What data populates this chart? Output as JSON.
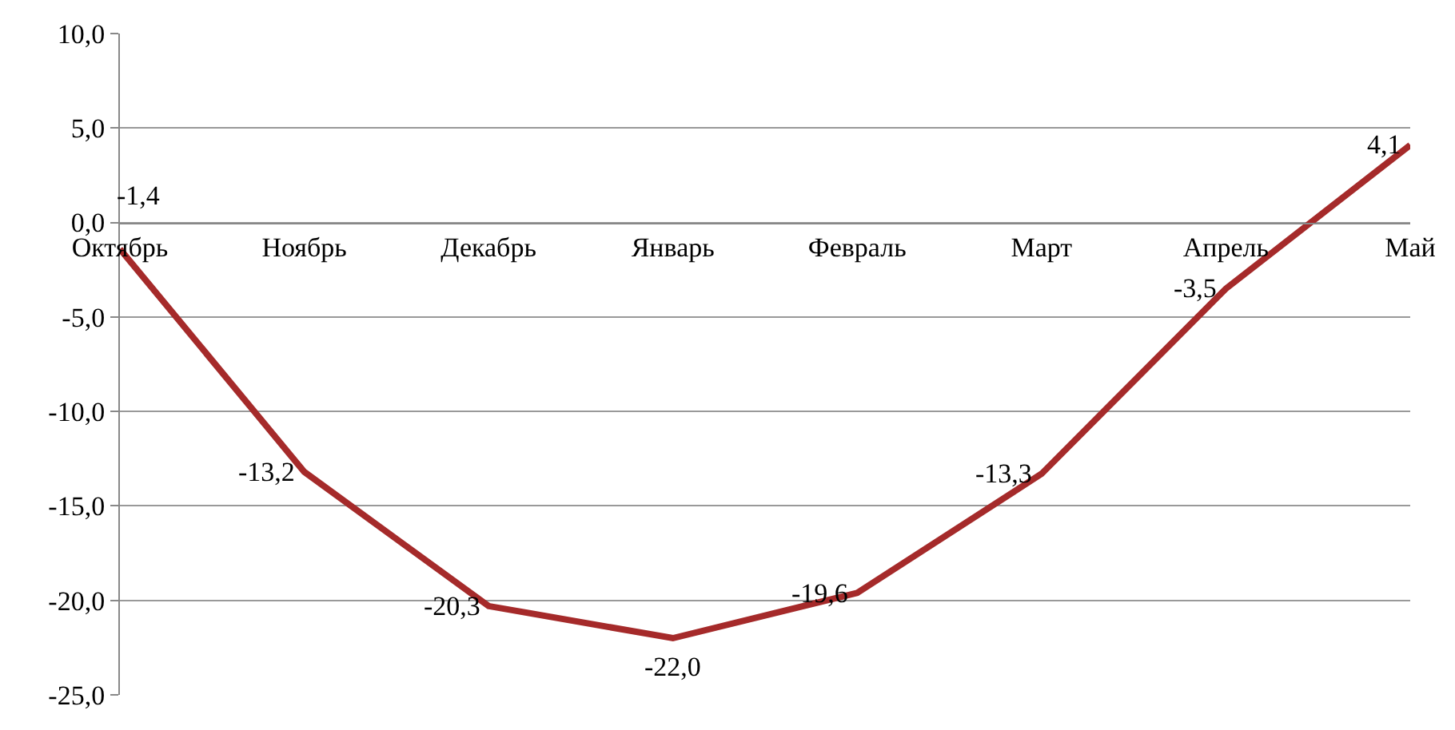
{
  "chart_data": {
    "type": "line",
    "categories": [
      "Октябрь",
      "Ноябрь",
      "Декабрь",
      "Январь",
      "Февраль",
      "Март",
      "Апрель",
      "Май"
    ],
    "series": [
      {
        "color": "#a52a2a",
        "values": [
          -1.4,
          -13.2,
          -20.3,
          -22.0,
          -19.6,
          -13.3,
          -3.5,
          4.1
        ],
        "value_labels": [
          "-1,4",
          "-13,2",
          "-20,3",
          "-22,0",
          "-19,6",
          "-13,3",
          "-3,5",
          "4,1"
        ]
      }
    ],
    "ylim": [
      -25,
      10
    ],
    "yticks": [
      {
        "value": 10,
        "label": "10,0"
      },
      {
        "value": 5,
        "label": "5,0"
      },
      {
        "value": 0,
        "label": "0,0"
      },
      {
        "value": -5,
        "label": "-5,0"
      },
      {
        "value": -10,
        "label": "-10,0"
      },
      {
        "value": -15,
        "label": "-15,0"
      },
      {
        "value": -20,
        "label": "-20,0"
      },
      {
        "value": -25,
        "label": "-25,0"
      }
    ],
    "grid": "y",
    "marker": "none",
    "line_style": "solid",
    "legend": false
  }
}
